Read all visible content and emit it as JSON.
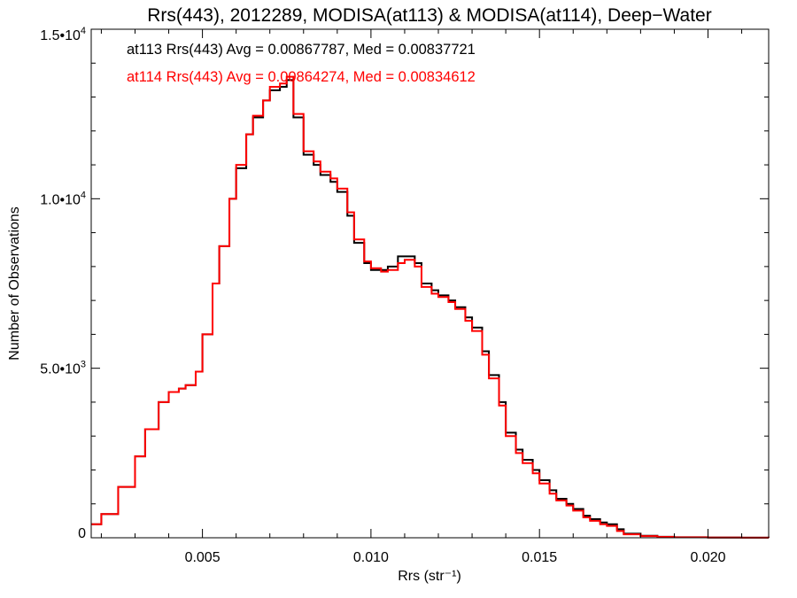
{
  "chart_data": {
    "type": "line",
    "title": "Rrs(443), 2012289, MODISA(at113) & MODISA(at114), Deep−Water",
    "xlabel": "Rrs (str⁻¹)",
    "ylabel": "Number of Observations",
    "xlim": [
      0.0017,
      0.0218
    ],
    "ylim": [
      0,
      15000
    ],
    "x_ticks": [
      0.005,
      0.01,
      0.015,
      0.02
    ],
    "x_tick_labels": [
      "0.005",
      "0.010",
      "0.015",
      "0.020"
    ],
    "y_ticks": [
      0,
      5000,
      10000,
      15000
    ],
    "y_tick_labels": [
      {
        "mantissa": "0",
        "exp": ""
      },
      {
        "mantissa": "5.0•10",
        "exp": "3"
      },
      {
        "mantissa": "1.0•10",
        "exp": "4"
      },
      {
        "mantissa": "1.5•10",
        "exp": "4"
      }
    ],
    "grid": false,
    "legend_position": "top-left",
    "annotations": [
      {
        "text": "at113 Rrs(443) Avg = 0.00867787, Med = 0.00837721",
        "color": "#000000"
      },
      {
        "text": "at114 Rrs(443) Avg = 0.00864274, Med = 0.00834612",
        "color": "#ff0000"
      }
    ],
    "series": [
      {
        "color": "#000000",
        "x": [
          0.0017,
          0.002,
          0.0025,
          0.003,
          0.0033,
          0.0037,
          0.004,
          0.0043,
          0.0045,
          0.0048,
          0.005,
          0.0053,
          0.0055,
          0.0058,
          0.006,
          0.0063,
          0.0065,
          0.0068,
          0.007,
          0.0073,
          0.0075,
          0.0077,
          0.008,
          0.0083,
          0.0085,
          0.0088,
          0.009,
          0.0093,
          0.0095,
          0.0098,
          0.01,
          0.0103,
          0.0105,
          0.0108,
          0.011,
          0.0113,
          0.0115,
          0.0118,
          0.012,
          0.0123,
          0.0125,
          0.0128,
          0.013,
          0.0133,
          0.0135,
          0.0138,
          0.014,
          0.0143,
          0.0145,
          0.0148,
          0.015,
          0.0153,
          0.0155,
          0.0158,
          0.016,
          0.0163,
          0.0165,
          0.0168,
          0.017,
          0.0173,
          0.0175,
          0.018,
          0.0185,
          0.019,
          0.02,
          0.021,
          0.0218
        ],
        "y": [
          400,
          700,
          1500,
          2400,
          3200,
          4000,
          4300,
          4400,
          4500,
          4900,
          6000,
          7500,
          8600,
          10000,
          10900,
          11900,
          12400,
          12900,
          13200,
          13300,
          13500,
          12400,
          11300,
          11000,
          10700,
          10500,
          10200,
          9500,
          8700,
          8100,
          7900,
          7900,
          8000,
          8300,
          8300,
          8100,
          7500,
          7300,
          7150,
          7000,
          6800,
          6500,
          6200,
          5500,
          4800,
          4000,
          3100,
          2600,
          2300,
          2000,
          1700,
          1400,
          1150,
          1000,
          850,
          650,
          550,
          450,
          400,
          250,
          120,
          60,
          30,
          15,
          8,
          3,
          2
        ]
      },
      {
        "color": "#ff0000",
        "x": [
          0.0017,
          0.002,
          0.0025,
          0.003,
          0.0033,
          0.0037,
          0.004,
          0.0043,
          0.0045,
          0.0048,
          0.005,
          0.0053,
          0.0055,
          0.0058,
          0.006,
          0.0063,
          0.0065,
          0.0068,
          0.007,
          0.0073,
          0.0075,
          0.0077,
          0.008,
          0.0083,
          0.0085,
          0.0088,
          0.009,
          0.0093,
          0.0095,
          0.0098,
          0.01,
          0.0103,
          0.0105,
          0.0108,
          0.011,
          0.0113,
          0.0115,
          0.0118,
          0.012,
          0.0123,
          0.0125,
          0.0128,
          0.013,
          0.0133,
          0.0135,
          0.0138,
          0.014,
          0.0143,
          0.0145,
          0.0148,
          0.015,
          0.0153,
          0.0155,
          0.0158,
          0.016,
          0.0163,
          0.0165,
          0.0168,
          0.017,
          0.0173,
          0.0175,
          0.018,
          0.0185,
          0.019,
          0.02,
          0.021,
          0.0218
        ],
        "y": [
          400,
          700,
          1500,
          2400,
          3200,
          4000,
          4300,
          4400,
          4500,
          4900,
          6000,
          7500,
          8600,
          10000,
          11000,
          11900,
          12450,
          12900,
          13300,
          13400,
          13600,
          12500,
          11400,
          11100,
          10800,
          10600,
          10300,
          9600,
          8800,
          8150,
          7950,
          7850,
          7900,
          8100,
          8200,
          8000,
          7400,
          7200,
          7100,
          6950,
          6750,
          6400,
          6100,
          5400,
          4700,
          3900,
          3000,
          2500,
          2200,
          1900,
          1600,
          1300,
          1100,
          950,
          800,
          600,
          500,
          400,
          350,
          200,
          100,
          50,
          25,
          12,
          6,
          2,
          1
        ]
      }
    ]
  }
}
